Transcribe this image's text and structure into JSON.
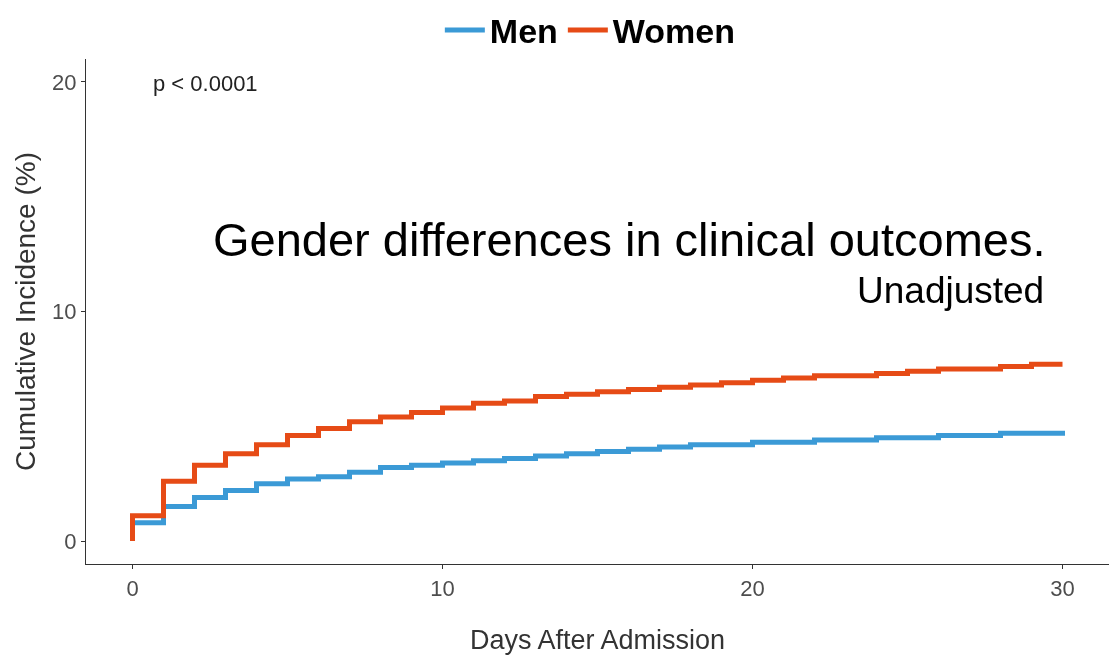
{
  "chart_data": {
    "type": "step",
    "title": "Gender differences in clinical outcomes.",
    "subtitle": "Unadjusted",
    "xlabel": "Days After Admission",
    "ylabel": "Cumulative Incidence (%)",
    "annotations": [
      "p < 0.0001"
    ],
    "series": [
      {
        "name": "Men",
        "color": "#3b9ad6",
        "x": [
          0,
          1,
          2,
          3,
          4,
          5,
          6,
          7,
          8,
          9,
          10,
          11,
          12,
          13,
          14,
          15,
          16,
          17,
          18,
          19,
          20,
          21,
          22,
          23,
          24,
          25,
          26,
          27,
          28,
          29,
          30
        ],
        "values": [
          0.8,
          1.5,
          1.9,
          2.2,
          2.5,
          2.7,
          2.8,
          3.0,
          3.2,
          3.3,
          3.4,
          3.5,
          3.6,
          3.7,
          3.8,
          3.9,
          4.0,
          4.1,
          4.2,
          4.2,
          4.3,
          4.3,
          4.4,
          4.4,
          4.5,
          4.5,
          4.6,
          4.6,
          4.7,
          4.7,
          4.8
        ]
      },
      {
        "name": "Women",
        "color": "#e64b16",
        "x": [
          0,
          0,
          1,
          2,
          3,
          4,
          5,
          6,
          7,
          8,
          9,
          10,
          11,
          12,
          13,
          14,
          15,
          16,
          17,
          18,
          19,
          20,
          21,
          22,
          23,
          24,
          25,
          26,
          27,
          28,
          29,
          30
        ],
        "values": [
          0,
          1.1,
          2.6,
          3.3,
          3.8,
          4.2,
          4.6,
          4.9,
          5.2,
          5.4,
          5.6,
          5.8,
          6.0,
          6.1,
          6.3,
          6.4,
          6.5,
          6.6,
          6.7,
          6.8,
          6.9,
          7.0,
          7.1,
          7.2,
          7.2,
          7.3,
          7.4,
          7.5,
          7.5,
          7.6,
          7.7,
          7.7
        ]
      }
    ],
    "xlim": [
      -1.5,
      31.5
    ],
    "xticks": [
      0,
      10,
      20,
      30
    ],
    "ylim": [
      -1,
      21
    ],
    "yticks": [
      0,
      10,
      20
    ],
    "grid": false,
    "legend": "top",
    "marker": "none",
    "line_style": "solid"
  }
}
